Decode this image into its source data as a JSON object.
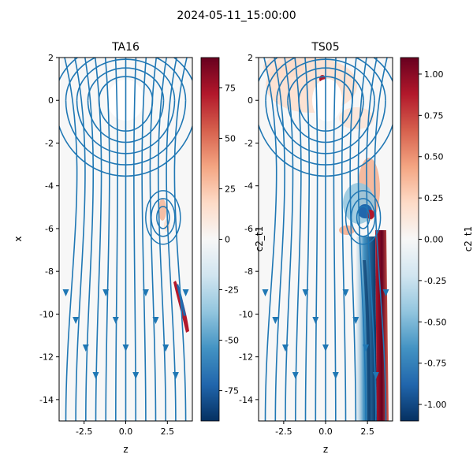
{
  "suptitle": "2024-05-11_15:00:00",
  "chart_data": [
    {
      "type": "heatmap",
      "title": "TA16",
      "xlabel": "z",
      "ylabel": "x",
      "xlim": [
        -4,
        4
      ],
      "ylim": [
        -15,
        2
      ],
      "xticks": [
        "-2.5",
        "0.0",
        "2.5"
      ],
      "xtick_values": [
        -2.5,
        0,
        2.5
      ],
      "yticks": [
        "2",
        "0",
        "-2",
        "-4",
        "-6",
        "-8",
        "-10",
        "-12",
        "-14"
      ],
      "ytick_values": [
        2,
        0,
        -2,
        -4,
        -6,
        -8,
        -10,
        -12,
        -14
      ],
      "overlay": "streamlines",
      "colormap": "RdBu_r",
      "streamline_color": "#1f77b4",
      "colorbar": {
        "label": "",
        "range": [
          -90,
          90
        ],
        "ticks": [
          "75",
          "50",
          "25",
          "0",
          "-25",
          "-50",
          "-75"
        ],
        "tick_values": [
          75,
          50,
          25,
          0,
          -25,
          -50,
          -75
        ]
      }
    },
    {
      "type": "heatmap",
      "title": "TS05",
      "xlabel": "z",
      "ylabel": "c2_t1",
      "xlim": [
        -4,
        4
      ],
      "ylim": [
        -15,
        2
      ],
      "xticks": [
        "-2.5",
        "0.0",
        "2.5"
      ],
      "xtick_values": [
        -2.5,
        0,
        2.5
      ],
      "yticks": [
        "2",
        "0",
        "-2",
        "-4",
        "-6",
        "-8",
        "-10",
        "-12",
        "-14"
      ],
      "ytick_values": [
        2,
        0,
        -2,
        -4,
        -6,
        -8,
        -10,
        -12,
        -14
      ],
      "overlay": "streamlines",
      "colormap": "RdBu_r",
      "streamline_color": "#1f77b4",
      "colorbar": {
        "label": "c2_t1",
        "range": [
          -1.1,
          1.1
        ],
        "ticks": [
          "1.00",
          "0.75",
          "0.50",
          "0.25",
          "0.00",
          "-0.25",
          "-0.50",
          "-0.75",
          "-1.00"
        ],
        "tick_values": [
          1.0,
          0.75,
          0.5,
          0.25,
          0.0,
          -0.25,
          -0.5,
          -0.75,
          -1.0
        ]
      }
    }
  ]
}
